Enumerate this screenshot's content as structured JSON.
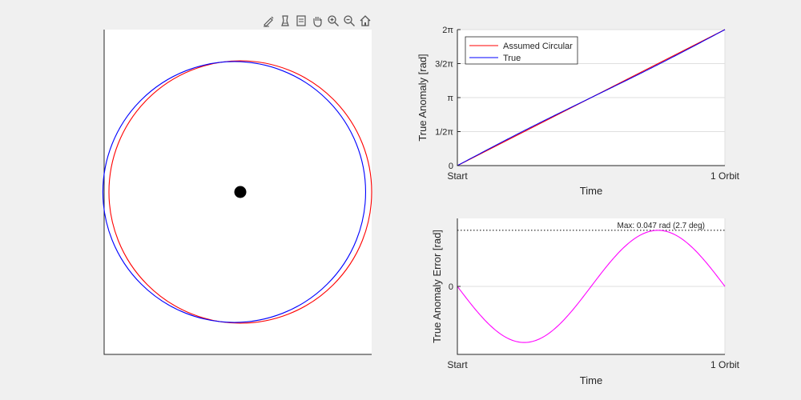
{
  "toolbar": {
    "icons": [
      "brush-edit-icon",
      "data-cursor-icon",
      "legend-icon",
      "pan-hand-icon",
      "zoom-in-icon",
      "zoom-out-icon",
      "home-icon"
    ]
  },
  "colors": {
    "circular": "#ff0000",
    "true": "#0000ff",
    "error": "#ff00ff",
    "body": "#000000"
  },
  "chart_data": [
    {
      "type": "line",
      "id": "orbit-plot",
      "title": "",
      "xlabel": "",
      "ylabel": "",
      "series": [
        {
          "name": "Assumed Circular",
          "center": [
            0,
            0
          ],
          "radius": 1.0
        },
        {
          "name": "True",
          "ellipse": {
            "semi_major": 1.0,
            "semi_minor": 0.994,
            "center_offset_x": -0.046
          }
        }
      ],
      "central_body": [
        0,
        0
      ],
      "axes_visible": false
    },
    {
      "type": "line",
      "id": "anomaly-plot",
      "xlabel": "Time",
      "ylabel": "True Anomaly [rad]",
      "x_ticks": [
        "Start",
        "1 Orbit"
      ],
      "y_ticks": [
        "0",
        "1/2π",
        "π",
        "3/2π",
        "2π"
      ],
      "ylim": [
        0,
        6.2832
      ],
      "grid": true,
      "legend": "top-left",
      "series": [
        {
          "name": "Assumed Circular",
          "x": [
            0,
            1
          ],
          "y": [
            0,
            6.2832
          ]
        },
        {
          "name": "True",
          "eccentricity": 0.0235
        }
      ]
    },
    {
      "type": "line",
      "id": "error-plot",
      "xlabel": "Time",
      "ylabel": "True Anomaly Error [rad]",
      "x_ticks": [
        "Start",
        "1 Orbit"
      ],
      "y_ticks": [
        "0"
      ],
      "ylim": [
        -0.057,
        0.057
      ],
      "grid": true,
      "series": [
        {
          "x": [
            0,
            0.25,
            0.5,
            0.75,
            1
          ],
          "y": [
            0,
            -0.047,
            0,
            0.047,
            0
          ]
        }
      ],
      "max_value": 0.047,
      "annotation": "Max: 0.047 rad (2.7 deg)"
    }
  ]
}
